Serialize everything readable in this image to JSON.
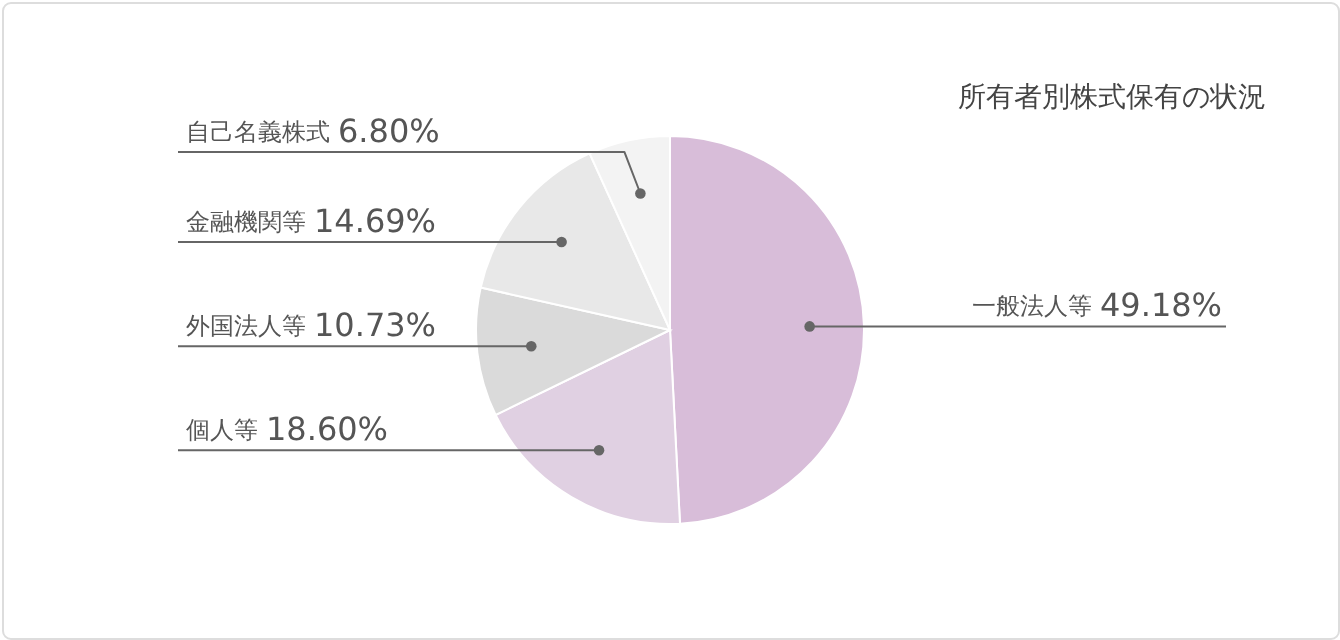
{
  "chart_data": {
    "type": "pie",
    "title": "所有者別株式保有の状況",
    "categories": [
      "一般法人等",
      "個人等",
      "外国法人等",
      "金融機関等",
      "自己名義株式"
    ],
    "values": [
      49.18,
      18.6,
      10.73,
      14.69,
      6.8
    ],
    "value_labels": [
      "49.18%",
      "18.60%",
      "10.73%",
      "14.69%",
      "6.80%"
    ],
    "colors": [
      "#d8bdd9",
      "#e0d0e2",
      "#dadada",
      "#e8e8e8",
      "#f3f3f3"
    ]
  }
}
